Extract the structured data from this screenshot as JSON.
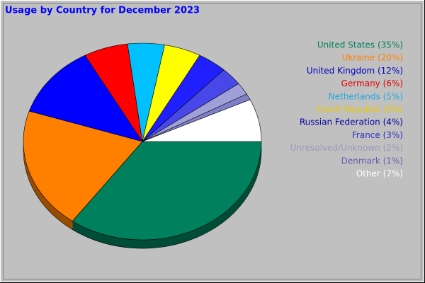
{
  "chart_data": {
    "type": "pie",
    "title": "Usage by Country for December 2023",
    "categories": [
      "United States (35%)",
      "Ukraine (20%)",
      "United Kingdom (12%)",
      "Germany (6%)",
      "Netherlands (5%)",
      "Czech Republic (5%)",
      "Russian Federation (4%)",
      "France (3%)",
      "Unresolved/Unknown (2%)",
      "Denmark (1%)",
      "Other (7%)"
    ],
    "values": [
      35,
      20,
      12,
      6,
      5,
      5,
      4,
      3,
      2,
      1,
      7
    ],
    "colors": [
      "#00805c",
      "#ff8000",
      "#0000ff",
      "#ff0000",
      "#00c0ff",
      "#ffff00",
      "#2020ff",
      "#4848e8",
      "#a0a0d8",
      "#8080c8",
      "#ffffff"
    ],
    "legend_colors": [
      "#00805c",
      "#ff8000",
      "#0000c0",
      "#e00000",
      "#20a8e0",
      "#e8c800",
      "#0000a0",
      "#3030c0",
      "#9898b8",
      "#6060b0",
      "#ffffff"
    ],
    "legend": "right"
  }
}
